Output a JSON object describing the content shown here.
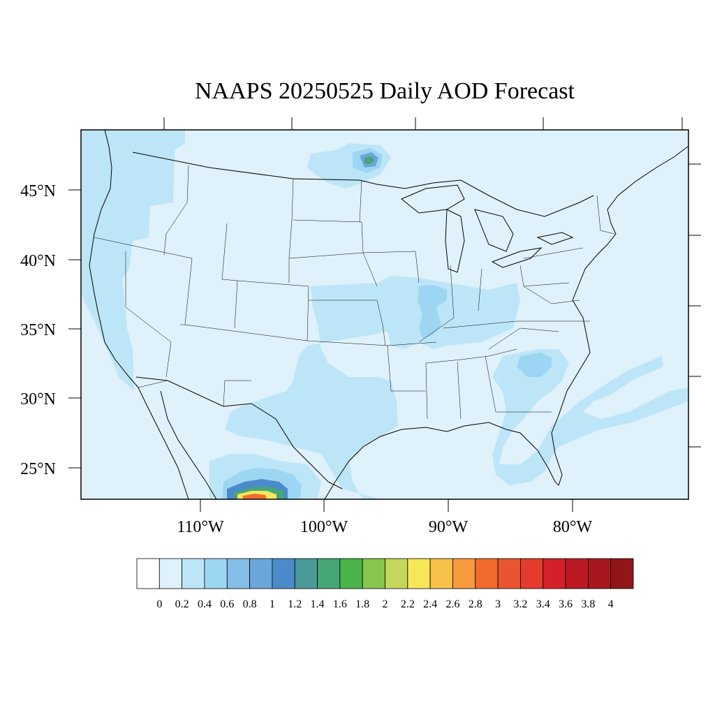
{
  "title": "NAAPS 20250525 Daily AOD Forecast",
  "lat_labels": [
    "45°N",
    "40°N",
    "35°N",
    "30°N",
    "25°N"
  ],
  "lon_labels": [
    "110°W",
    "100°W",
    "90°W",
    "80°W"
  ],
  "colorbar": {
    "labels": [
      "0",
      "0.2",
      "0.4",
      "0.6",
      "0.8",
      "1",
      "1.2",
      "1.4",
      "1.6",
      "1.8",
      "2",
      "2.2",
      "2.4",
      "2.6",
      "2.8",
      "3",
      "3.2",
      "3.4",
      "3.6",
      "3.8",
      "4"
    ],
    "colors": [
      "#ffffff",
      "#dff1fb",
      "#bde5f8",
      "#9dd6f3",
      "#85bde6",
      "#6aa6da",
      "#4a8bcb",
      "#4a9a9a",
      "#46a676",
      "#4ab44a",
      "#86c64e",
      "#c3d75a",
      "#f6e65a",
      "#f8c24a",
      "#f69a3e",
      "#f26a2e",
      "#e85530",
      "#e43c2c",
      "#d42028",
      "#bb1a24",
      "#a8161f",
      "#921519"
    ]
  },
  "map": {
    "background_color": "#dff1fb",
    "features": [
      "coastline",
      "state-boundaries",
      "country-boundaries",
      "great-lakes"
    ]
  }
}
